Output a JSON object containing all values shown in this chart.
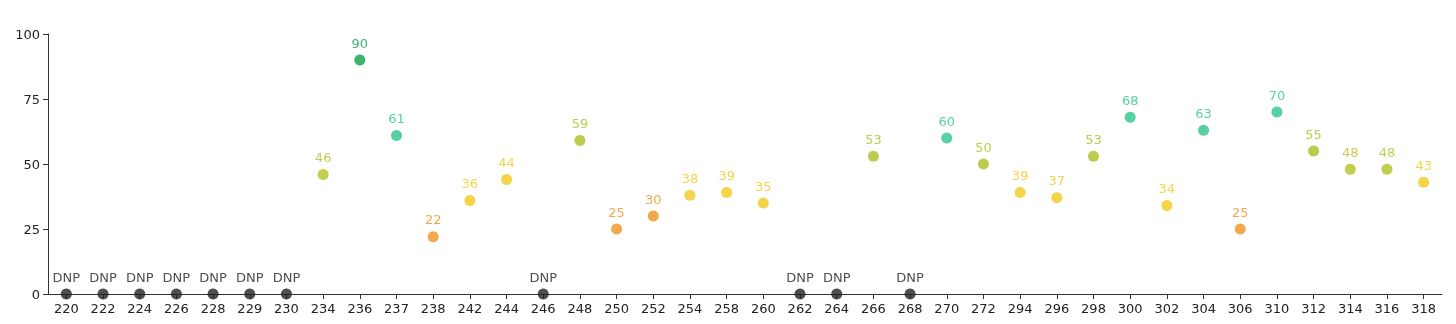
{
  "chart_data": {
    "type": "scatter",
    "marker": "circle",
    "grid": false,
    "categories": [
      "220",
      "222",
      "224",
      "226",
      "228",
      "229",
      "230",
      "234",
      "236",
      "237",
      "238",
      "242",
      "244",
      "246",
      "248",
      "250",
      "252",
      "254",
      "258",
      "260",
      "262",
      "264",
      "266",
      "268",
      "270",
      "272",
      "294",
      "296",
      "298",
      "300",
      "302",
      "304",
      "306",
      "310",
      "312",
      "314",
      "316",
      "318"
    ],
    "values": [
      0,
      0,
      0,
      0,
      0,
      0,
      0,
      46,
      90,
      61,
      22,
      36,
      44,
      0,
      59,
      25,
      30,
      38,
      39,
      35,
      0,
      0,
      53,
      0,
      60,
      50,
      39,
      37,
      53,
      68,
      34,
      63,
      25,
      70,
      55,
      48,
      48,
      43
    ],
    "value_labels": [
      "DNP",
      "DNP",
      "DNP",
      "DNP",
      "DNP",
      "DNP",
      "DNP",
      "46",
      "90",
      "61",
      "22",
      "36",
      "44",
      "DNP",
      "59",
      "25",
      "30",
      "38",
      "39",
      "35",
      "DNP",
      "DNP",
      "53",
      "DNP",
      "60",
      "50",
      "39",
      "37",
      "53",
      "68",
      "34",
      "63",
      "25",
      "70",
      "55",
      "48",
      "48",
      "43"
    ],
    "colors": [
      "#222222",
      "#222222",
      "#222222",
      "#222222",
      "#222222",
      "#222222",
      "#222222",
      "#b3c224",
      "#0aa24a",
      "#2ec58b",
      "#ef9320",
      "#f2c81e",
      "#f2c81e",
      "#222222",
      "#aabf22",
      "#ef9320",
      "#ef9320",
      "#f2c81e",
      "#f2c81e",
      "#f2c81e",
      "#222222",
      "#222222",
      "#aabf22",
      "#222222",
      "#2ec58b",
      "#aabf22",
      "#f2c81e",
      "#f2c81e",
      "#aabf22",
      "#2ec58b",
      "#f2c81e",
      "#2ec58b",
      "#ef9320",
      "#2ec58b",
      "#aabf22",
      "#b3c224",
      "#b3c224",
      "#f2c81e"
    ],
    "ylim": [
      0,
      100
    ],
    "yticks": [
      0,
      25,
      50,
      75,
      100
    ]
  }
}
